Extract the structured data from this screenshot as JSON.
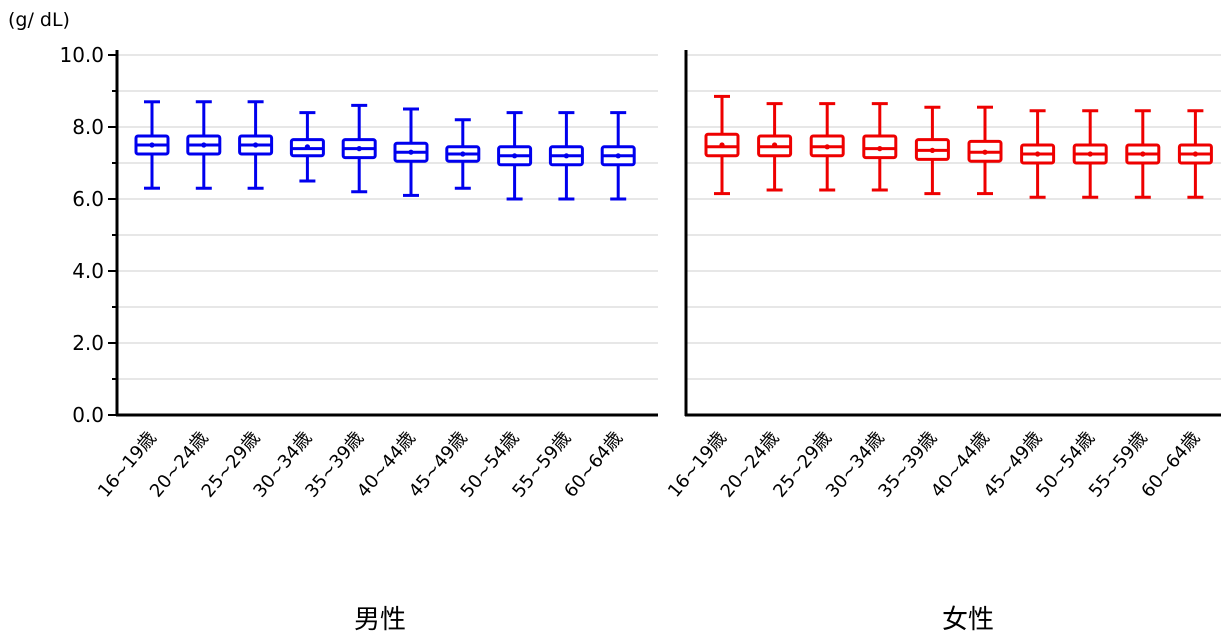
{
  "unit_label": "(g/ dL)",
  "chart_data": {
    "type": "box",
    "ylim": [
      0,
      10
    ],
    "yticks": [
      "0.0",
      "2.0",
      "4.0",
      "6.0",
      "8.0",
      "10.0"
    ],
    "grid": true,
    "categories": [
      "16~19歳",
      "20~24歳",
      "25~29歳",
      "30~34歳",
      "35~39歳",
      "40~44歳",
      "45~49歳",
      "50~54歳",
      "55~59歳",
      "60~64歳"
    ],
    "panels": [
      {
        "title": "男性",
        "color": "#0000ee",
        "boxes": [
          {
            "min": 6.3,
            "q1": 7.25,
            "median": 7.5,
            "q3": 7.75,
            "max": 8.7,
            "mean": 7.5
          },
          {
            "min": 6.3,
            "q1": 7.25,
            "median": 7.5,
            "q3": 7.75,
            "max": 8.7,
            "mean": 7.5
          },
          {
            "min": 6.3,
            "q1": 7.25,
            "median": 7.5,
            "q3": 7.75,
            "max": 8.7,
            "mean": 7.5
          },
          {
            "min": 6.5,
            "q1": 7.2,
            "median": 7.4,
            "q3": 7.65,
            "max": 8.4,
            "mean": 7.45
          },
          {
            "min": 6.2,
            "q1": 7.15,
            "median": 7.4,
            "q3": 7.65,
            "max": 8.6,
            "mean": 7.4
          },
          {
            "min": 6.1,
            "q1": 7.05,
            "median": 7.3,
            "q3": 7.55,
            "max": 8.5,
            "mean": 7.3
          },
          {
            "min": 6.3,
            "q1": 7.05,
            "median": 7.25,
            "q3": 7.45,
            "max": 8.2,
            "mean": 7.25
          },
          {
            "min": 6.0,
            "q1": 6.95,
            "median": 7.2,
            "q3": 7.45,
            "max": 8.4,
            "mean": 7.2
          },
          {
            "min": 6.0,
            "q1": 6.95,
            "median": 7.2,
            "q3": 7.45,
            "max": 8.4,
            "mean": 7.2
          },
          {
            "min": 6.0,
            "q1": 6.95,
            "median": 7.2,
            "q3": 7.45,
            "max": 8.4,
            "mean": 7.2
          }
        ]
      },
      {
        "title": "女性",
        "color": "#ee0000",
        "boxes": [
          {
            "min": 6.15,
            "q1": 7.2,
            "median": 7.45,
            "q3": 7.8,
            "max": 8.85,
            "mean": 7.5
          },
          {
            "min": 6.25,
            "q1": 7.2,
            "median": 7.45,
            "q3": 7.75,
            "max": 8.65,
            "mean": 7.5
          },
          {
            "min": 6.25,
            "q1": 7.2,
            "median": 7.45,
            "q3": 7.75,
            "max": 8.65,
            "mean": 7.45
          },
          {
            "min": 6.25,
            "q1": 7.15,
            "median": 7.4,
            "q3": 7.75,
            "max": 8.65,
            "mean": 7.4
          },
          {
            "min": 6.15,
            "q1": 7.1,
            "median": 7.35,
            "q3": 7.65,
            "max": 8.55,
            "mean": 7.35
          },
          {
            "min": 6.15,
            "q1": 7.05,
            "median": 7.3,
            "q3": 7.6,
            "max": 8.55,
            "mean": 7.3
          },
          {
            "min": 6.05,
            "q1": 7.0,
            "median": 7.25,
            "q3": 7.5,
            "max": 8.45,
            "mean": 7.25
          },
          {
            "min": 6.05,
            "q1": 7.0,
            "median": 7.25,
            "q3": 7.5,
            "max": 8.45,
            "mean": 7.25
          },
          {
            "min": 6.05,
            "q1": 7.0,
            "median": 7.25,
            "q3": 7.5,
            "max": 8.45,
            "mean": 7.25
          },
          {
            "min": 6.05,
            "q1": 7.0,
            "median": 7.25,
            "q3": 7.5,
            "max": 8.45,
            "mean": 7.25
          }
        ]
      }
    ]
  }
}
